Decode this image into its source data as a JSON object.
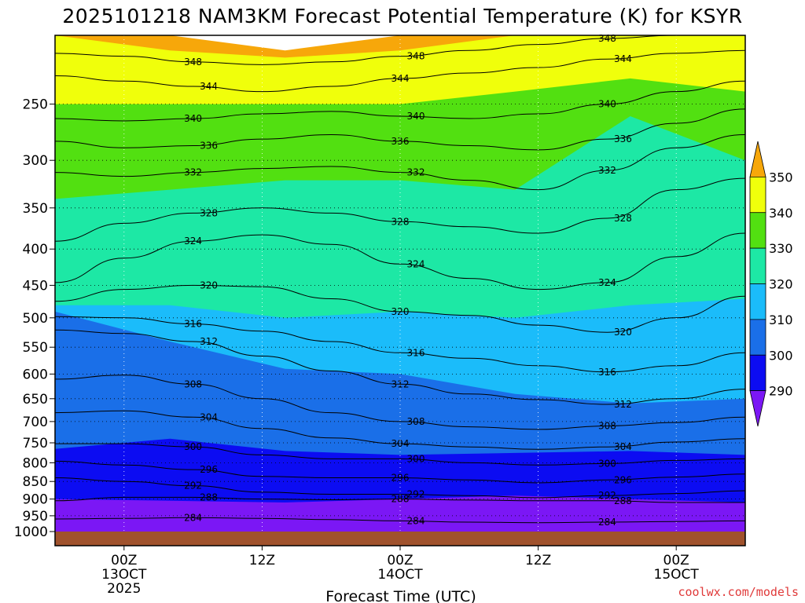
{
  "chart_data": {
    "type": "heatmap",
    "title": "2025101218 NAM3KM Forecast Potential Temperature (K) for KSYR",
    "xlabel": "Forecast Time (UTC)",
    "ylabel": "",
    "y_scale": "log-pressure",
    "ylim": [
      1000,
      200
    ],
    "x_range_hours": [
      18,
      78
    ],
    "y_ticks": [
      250,
      300,
      350,
      400,
      450,
      500,
      550,
      600,
      650,
      700,
      750,
      800,
      850,
      900,
      950,
      1000
    ],
    "x_ticks": [
      {
        "hours": 24,
        "l1": "00Z",
        "l2": "13OCT",
        "l3": "2025"
      },
      {
        "hours": 36,
        "l1": "12Z",
        "l2": "",
        "l3": ""
      },
      {
        "hours": 48,
        "l1": "00Z",
        "l2": "14OCT",
        "l3": ""
      },
      {
        "hours": 60,
        "l1": "12Z",
        "l2": "",
        "l3": ""
      },
      {
        "hours": 72,
        "l1": "00Z",
        "l2": "15OCT",
        "l3": ""
      }
    ],
    "colorbar": {
      "levels": [
        290,
        300,
        310,
        320,
        330,
        340,
        350
      ],
      "colors": [
        "#7b17f5",
        "#0c0cf2",
        "#1a6fe8",
        "#1bbcfa",
        "#1de8a5",
        "#52e011",
        "#f0ff0b",
        "#f7a70a"
      ]
    },
    "fill_bands": [
      {
        "lo": 280,
        "hi": 290,
        "color": "#7b17f5",
        "p": [
          1000,
          1000,
          1000,
          1000,
          1000,
          1000,
          1000
        ],
        "p_top": [
          900,
          905,
          910,
          900,
          890,
          900,
          910
        ]
      },
      {
        "lo": 290,
        "hi": 300,
        "color": "#0c0cf2",
        "p_top": [
          765,
          740,
          770,
          780,
          775,
          770,
          780
        ]
      },
      {
        "lo": 300,
        "hi": 310,
        "color": "#1a6fe8",
        "p_top": [
          490,
          540,
          590,
          600,
          640,
          660,
          650
        ]
      },
      {
        "lo": 310,
        "hi": 320,
        "color": "#1bbcfa",
        "p_top": [
          480,
          480,
          500,
          490,
          500,
          480,
          470
        ]
      },
      {
        "lo": 320,
        "hi": 330,
        "color": "#1de8a5",
        "p_top": [
          340,
          330,
          320,
          320,
          330,
          260,
          300
        ]
      },
      {
        "lo": 330,
        "hi": 340,
        "color": "#52e011",
        "p_top": [
          250,
          250,
          250,
          250,
          240,
          230,
          240
        ]
      },
      {
        "lo": 340,
        "hi": 350,
        "color": "#f0ff0b",
        "p_top": [
          200,
          210,
          215,
          210,
          200,
          200,
          200
        ]
      },
      {
        "lo": 350,
        "hi": 360,
        "color": "#f7a70a",
        "p_top": [
          195,
          200,
          210,
          200,
          195,
          195,
          195
        ]
      }
    ],
    "contours": [
      {
        "theta": 348,
        "label": "348",
        "hours": [
          18,
          24,
          30,
          36,
          42,
          48,
          54,
          60,
          66,
          72,
          78
        ],
        "p": [
          212,
          214,
          218,
          220,
          218,
          214,
          210,
          206,
          202,
          200,
          200
        ]
      },
      {
        "theta": 344,
        "label": "344",
        "hours": [
          18,
          24,
          30,
          36,
          42,
          48,
          54,
          60,
          66,
          72,
          78
        ],
        "p": [
          228,
          232,
          236,
          240,
          236,
          230,
          226,
          222,
          216,
          212,
          210
        ]
      },
      {
        "theta": 340,
        "label": "340",
        "hours": [
          18,
          24,
          30,
          36,
          42,
          48,
          54,
          60,
          66,
          72,
          78
        ],
        "p": [
          262,
          264,
          262,
          258,
          256,
          260,
          262,
          258,
          250,
          240,
          232
        ]
      },
      {
        "theta": 336,
        "label": "336",
        "hours": [
          18,
          24,
          30,
          36,
          42,
          48,
          54,
          60,
          66,
          72,
          78
        ],
        "p": [
          282,
          288,
          286,
          280,
          276,
          282,
          286,
          290,
          280,
          266,
          254
        ]
      },
      {
        "theta": 332,
        "label": "332",
        "hours": [
          18,
          24,
          30,
          36,
          42,
          48,
          54,
          60,
          66,
          72,
          78
        ],
        "p": [
          312,
          316,
          312,
          308,
          306,
          312,
          320,
          330,
          310,
          288,
          276
        ]
      },
      {
        "theta": 328,
        "label": "328",
        "hours": [
          18,
          24,
          30,
          36,
          42,
          48,
          54,
          60,
          66,
          72,
          78
        ],
        "p": [
          390,
          368,
          356,
          350,
          356,
          366,
          372,
          380,
          362,
          330,
          318
        ]
      },
      {
        "theta": 324,
        "label": "324",
        "hours": [
          18,
          24,
          30,
          36,
          42,
          48,
          54,
          60,
          66,
          72,
          78
        ],
        "p": [
          446,
          412,
          390,
          382,
          394,
          420,
          440,
          456,
          446,
          410,
          380
        ]
      },
      {
        "theta": 320,
        "label": "320",
        "hours": [
          18,
          24,
          30,
          36,
          42,
          48,
          54,
          60,
          66,
          72,
          78
        ],
        "p": [
          474,
          456,
          450,
          452,
          470,
          490,
          496,
          512,
          524,
          500,
          466
        ]
      },
      {
        "theta": 316,
        "label": "316",
        "hours": [
          18,
          24,
          30,
          36,
          42,
          48,
          54,
          60,
          66,
          72,
          78
        ],
        "p": [
          498,
          500,
          510,
          522,
          540,
          560,
          570,
          584,
          596,
          584,
          560
        ]
      },
      {
        "theta": 312,
        "label": "312",
        "hours": [
          18,
          24,
          30,
          36,
          42,
          48,
          54,
          60,
          66,
          72,
          78
        ],
        "p": [
          520,
          526,
          540,
          566,
          594,
          620,
          640,
          652,
          662,
          650,
          630
        ]
      },
      {
        "theta": 308,
        "label": "308",
        "hours": [
          18,
          24,
          30,
          36,
          42,
          48,
          54,
          60,
          66,
          72,
          78
        ],
        "p": [
          610,
          602,
          620,
          650,
          680,
          700,
          712,
          718,
          710,
          702,
          690
        ]
      },
      {
        "theta": 304,
        "label": "304",
        "hours": [
          18,
          24,
          30,
          36,
          42,
          48,
          54,
          60,
          66,
          72,
          78
        ],
        "p": [
          680,
          676,
          690,
          716,
          738,
          752,
          760,
          766,
          760,
          748,
          740
        ]
      },
      {
        "theta": 300,
        "label": "300",
        "hours": [
          18,
          24,
          30,
          36,
          42,
          48,
          54,
          60,
          66,
          72,
          78
        ],
        "p": [
          752,
          752,
          760,
          780,
          790,
          790,
          800,
          806,
          802,
          794,
          790
        ]
      },
      {
        "theta": 296,
        "label": "296",
        "hours": [
          18,
          24,
          30,
          36,
          42,
          48,
          54,
          60,
          66,
          72,
          78
        ],
        "p": [
          796,
          806,
          818,
          836,
          840,
          840,
          846,
          854,
          846,
          838,
          830
        ]
      },
      {
        "theta": 292,
        "label": "292",
        "hours": [
          18,
          24,
          30,
          36,
          42,
          48,
          54,
          60,
          66,
          72,
          78
        ],
        "p": [
          840,
          850,
          862,
          880,
          886,
          886,
          890,
          896,
          890,
          884,
          876
        ]
      },
      {
        "theta": 288,
        "label": "288",
        "hours": [
          18,
          24,
          30,
          36,
          42,
          48,
          54,
          60,
          66,
          72,
          78
        ],
        "p": [
          905,
          895,
          895,
          900,
          902,
          900,
          903,
          905,
          905,
          910,
          910
        ]
      },
      {
        "theta": 284,
        "label": "284",
        "hours": [
          18,
          24,
          30,
          36,
          42,
          48,
          54,
          60,
          66,
          72,
          78
        ],
        "p": [
          960,
          958,
          956,
          958,
          962,
          966,
          970,
          972,
          970,
          968,
          966
        ]
      }
    ],
    "ground_color": "#a0522d",
    "watermark": "coolwx.com/models"
  }
}
